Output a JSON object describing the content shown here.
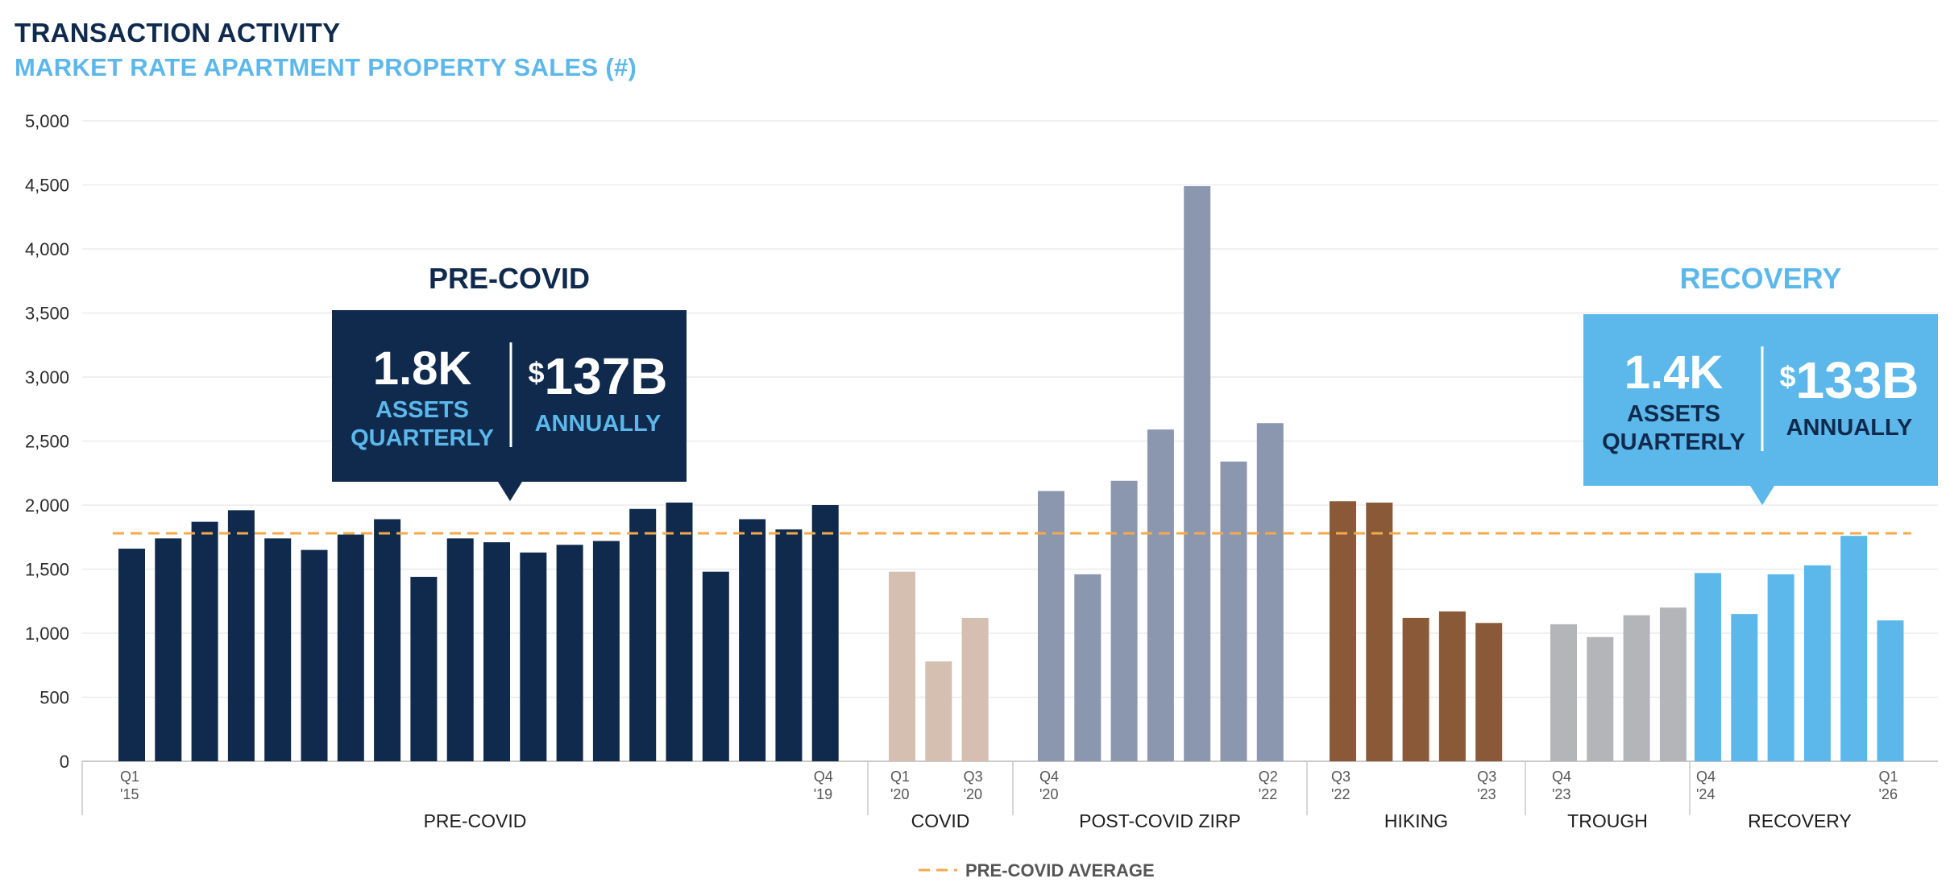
{
  "title": "TRANSACTION ACTIVITY",
  "subtitle": "MARKET RATE APARTMENT PROPERTY SALES (#)",
  "colors": {
    "pre_covid": "#0f2a4d",
    "covid": "#d4bfb0",
    "post_covid_zirp": "#8a97ae",
    "hiking": "#8a5a38",
    "trough": "#b4b5b8",
    "recovery": "#5cb8ea",
    "average": "#f5a94a"
  },
  "chart_data": {
    "type": "bar",
    "title": "TRANSACTION ACTIVITY",
    "subtitle": "MARKET RATE APARTMENT PROPERTY SALES (#)",
    "xlabel": "",
    "ylabel": "",
    "ylim": [
      0,
      5000
    ],
    "yticks": [
      0,
      500,
      1000,
      1500,
      2000,
      2500,
      3000,
      3500,
      4000,
      4500,
      5000
    ],
    "ytick_labels": [
      "0",
      "500",
      "1,000",
      "1,500",
      "2,000",
      "2,500",
      "3,000",
      "3,500",
      "4,000",
      "4,500",
      "5,000"
    ],
    "grid": true,
    "reference_line": {
      "name": "PRE-COVID AVERAGE",
      "value": 1780
    },
    "legend": {
      "placement": "bottom-center",
      "entries": [
        "PRE-COVID AVERAGE"
      ]
    },
    "groups": [
      {
        "name": "PRE-COVID",
        "color_key": "pre_covid",
        "start_label": [
          "Q1",
          "'15"
        ],
        "end_label": [
          "Q4",
          "'19"
        ],
        "values": [
          1660,
          1740,
          1870,
          1960,
          1740,
          1650,
          1770,
          1890,
          1440,
          1740,
          1710,
          1630,
          1690,
          1720,
          1970,
          2020,
          1480,
          1890,
          1810,
          2000
        ]
      },
      {
        "name": "COVID",
        "color_key": "covid",
        "start_label": [
          "Q1",
          "'20"
        ],
        "end_label": [
          "Q3",
          "'20"
        ],
        "values": [
          1480,
          780,
          1120
        ]
      },
      {
        "name": "POST-COVID ZIRP",
        "color_key": "post_covid_zirp",
        "start_label": [
          "Q4",
          "'20"
        ],
        "end_label": [
          "Q2",
          "'22"
        ],
        "values": [
          2110,
          1460,
          2190,
          2590,
          4490,
          2340,
          2640
        ]
      },
      {
        "name": "HIKING",
        "color_key": "hiking",
        "start_label": [
          "Q3",
          "'22"
        ],
        "end_label": [
          "Q3",
          "'23"
        ],
        "values": [
          2030,
          2020,
          1120,
          1170,
          1080
        ]
      },
      {
        "name": "TROUGH",
        "color_key": "trough",
        "start_label": [
          "Q4",
          "'23"
        ],
        "end_label": [],
        "values": [
          1070,
          970,
          1140,
          1200
        ]
      },
      {
        "name": "RECOVERY",
        "color_key": "recovery",
        "start_label": [
          "Q4",
          "'24"
        ],
        "end_label": [
          "Q1",
          "'26"
        ],
        "values": [
          1470,
          1150,
          1460,
          1530,
          1760,
          1100
        ]
      }
    ],
    "callouts": [
      {
        "heading": "PRE-COVID",
        "assets_value": "1.8K",
        "assets_label": [
          "ASSETS",
          "QUARTERLY"
        ],
        "dollar_sign": "$",
        "dollars_value": "137B",
        "dollars_label": "ANNUALLY"
      },
      {
        "heading": "RECOVERY",
        "assets_value": "1.4K",
        "assets_label": [
          "ASSETS",
          "QUARTERLY"
        ],
        "dollar_sign": "$",
        "dollars_value": "133B",
        "dollars_label": "ANNUALLY"
      }
    ]
  }
}
